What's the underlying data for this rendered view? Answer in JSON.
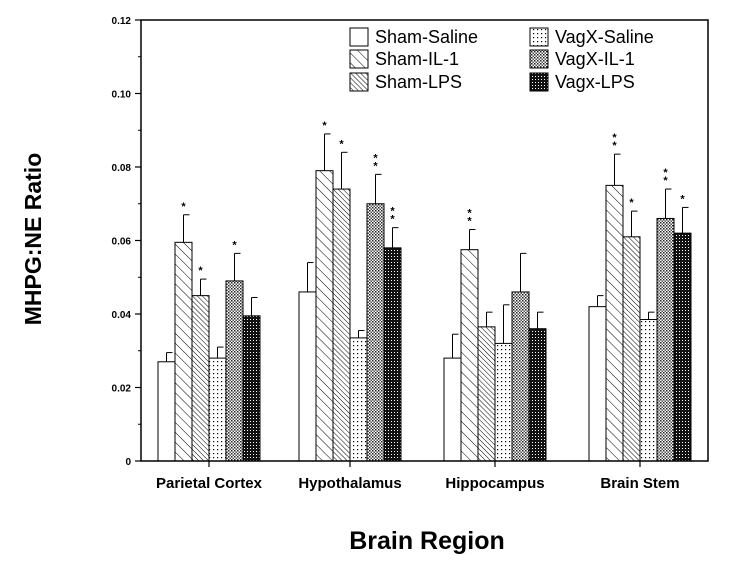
{
  "chart_data": {
    "type": "bar",
    "xlabel": "Brain Region",
    "ylabel": "MHPG:NE Ratio",
    "ylim": [
      0,
      0.12
    ],
    "yticks": [
      "0",
      "0.02",
      "0.04",
      "0.06",
      "0.08",
      "0.10",
      "0.12"
    ],
    "categories": [
      "Parietal Cortex",
      "Hypothalamus",
      "Hippocampus",
      "Brain Stem"
    ],
    "legend_position": "top-right",
    "series": [
      {
        "name": "Sham-Saline",
        "pattern": "blank",
        "values": [
          0.027,
          0.046,
          0.028,
          0.042
        ],
        "errors": [
          0.0025,
          0.008,
          0.0065,
          0.003
        ],
        "significance": [
          "",
          "",
          "",
          ""
        ]
      },
      {
        "name": "Sham-IL-1",
        "pattern": "diag-sparse",
        "values": [
          0.0595,
          0.079,
          0.0575,
          0.075
        ],
        "errors": [
          0.0075,
          0.01,
          0.0055,
          0.0085
        ],
        "significance": [
          "*",
          "*",
          "**",
          "**"
        ]
      },
      {
        "name": "Sham-LPS",
        "pattern": "diag-dense",
        "values": [
          0.045,
          0.074,
          0.0365,
          0.061
        ],
        "errors": [
          0.0045,
          0.01,
          0.004,
          0.007
        ],
        "significance": [
          "*",
          "*",
          "",
          "*"
        ]
      },
      {
        "name": "VagX-Saline",
        "pattern": "dots",
        "values": [
          0.028,
          0.0335,
          0.032,
          0.0385
        ],
        "errors": [
          0.003,
          0.002,
          0.0105,
          0.002
        ],
        "significance": [
          "",
          "",
          "",
          ""
        ]
      },
      {
        "name": "VagX-IL-1",
        "pattern": "grid",
        "values": [
          0.049,
          0.07,
          0.046,
          0.066
        ],
        "errors": [
          0.0075,
          0.008,
          0.0105,
          0.008
        ],
        "significance": [
          "*",
          "**",
          "",
          "**"
        ]
      },
      {
        "name": "Vagx-LPS",
        "pattern": "dense-dark",
        "values": [
          0.0395,
          0.058,
          0.036,
          0.062
        ],
        "errors": [
          0.005,
          0.0055,
          0.0045,
          0.007
        ],
        "significance": [
          "",
          "**",
          "",
          "*"
        ]
      }
    ]
  }
}
